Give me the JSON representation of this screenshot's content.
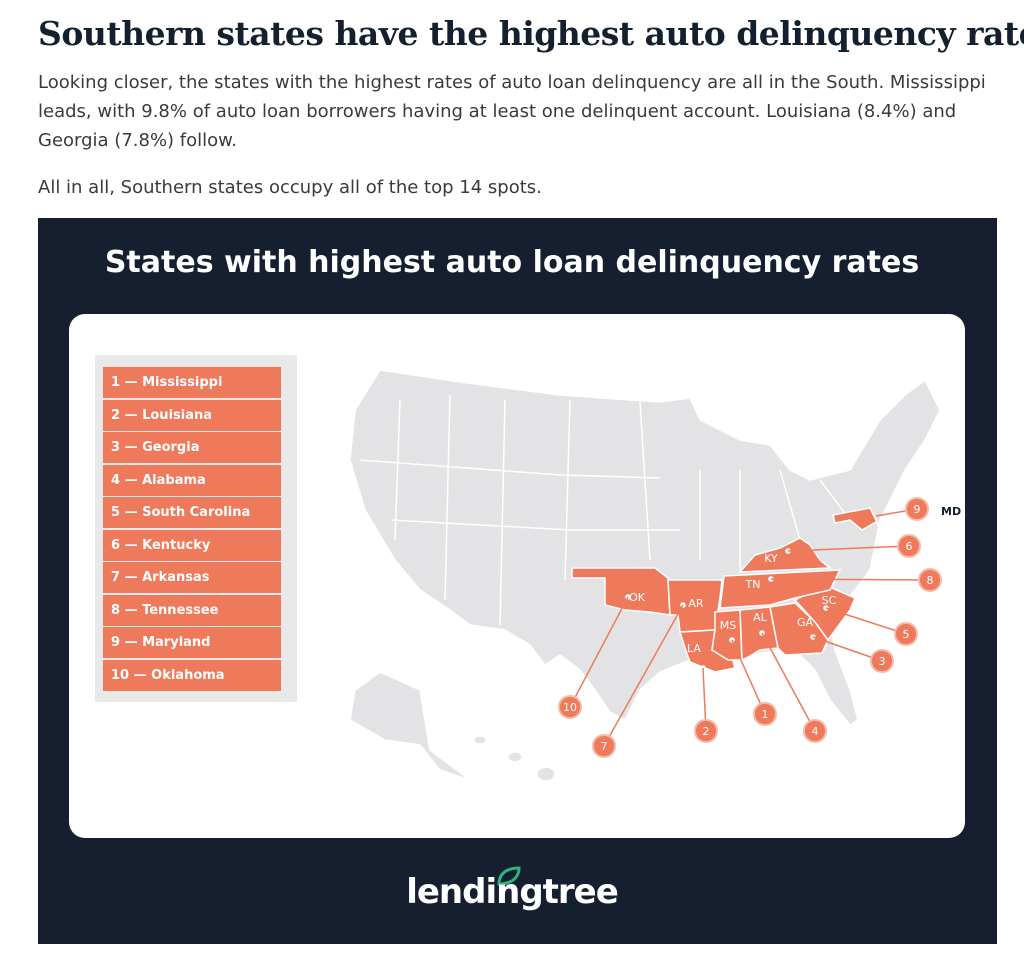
{
  "header": {
    "title": "Southern states have the highest auto delinquency rates"
  },
  "paragraphs": [
    "Looking closer, the states with the highest rates of auto loan delinquency are all in the South. Mississippi leads, with 9.8% of auto loan borrowers having at least one delinquent account. Louisiana (8.4%) and Georgia (7.8%) follow.",
    "All in all, Southern states occupy all of the top 14 spots."
  ],
  "infographic": {
    "title": "States with highest auto loan delinquency rates",
    "legend": [
      "1 — Mississippi",
      "2 — Louisiana",
      "3 — Georgia",
      "4 — Alabama",
      "5 — South Carolina",
      "6 — Kentucky",
      "7 — Arkansas",
      "8 — Tennessee",
      "9 — Maryland",
      "10 — Oklahoma"
    ],
    "state_labels": [
      "OK",
      "AR",
      "LA",
      "MS",
      "AL",
      "GA",
      "SC",
      "KY",
      "TN",
      "MD"
    ],
    "callouts": [
      "10",
      "7",
      "2",
      "1",
      "4",
      "3",
      "5",
      "6",
      "8",
      "9"
    ],
    "logo": "lendingtree"
  }
}
